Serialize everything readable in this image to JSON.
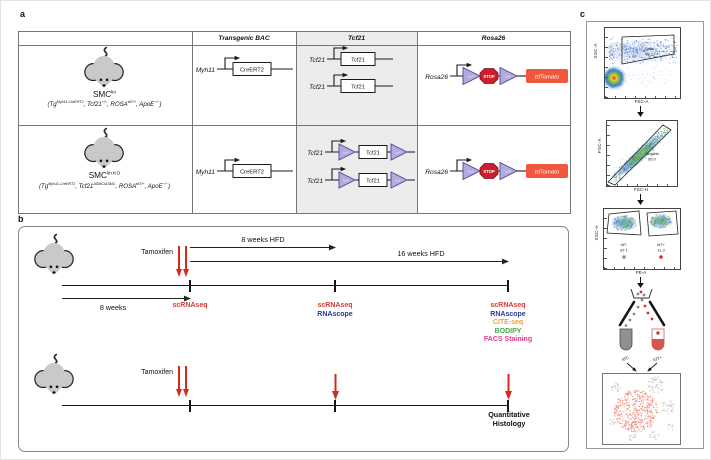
{
  "panel_labels": {
    "a": "a",
    "b": "b",
    "c": "c"
  },
  "panel_a": {
    "headers": {
      "transgenic_bac": "Transgenic BAC",
      "tcf21": "Tcf21",
      "rosa26": "Rosa26"
    },
    "row1": {
      "name": "SMC",
      "name_sup": "lin",
      "genotype": {
        "p1": "(Tg",
        "s1": "Myh11-CreERT2",
        "p2": ", Tcf21",
        "s2": "+/+",
        "p3": ", ROSA",
        "s3": "tdT/+",
        "p4": ", ApoE",
        "s4": "−/−",
        "p5": ")"
      },
      "bac_label": "Myh11",
      "bac_box": "CreERT2",
      "tcf21_label": "Tcf21",
      "tcf21_box": "Tcf21",
      "rosa_label": "Rosa26",
      "stop": "STOP",
      "reporter": "tdTomato",
      "loxp": "loxP"
    },
    "row2": {
      "name": "SMC",
      "name_sup": "lin KO",
      "genotype": {
        "p1": "(Tg",
        "s1": "Myh11-CreERT2",
        "p2": ", Tcf21",
        "s2": "ΔSMC/ΔSMC",
        "p3": ", ROSA",
        "s3": "tdT/+",
        "p4": ", ApoE",
        "s4": "−/−",
        "p5": ")"
      },
      "bac_label": "Myh11",
      "bac_box": "CreERT2",
      "tcf21_label": "Tcf21",
      "tcf21_box": "Tcf21",
      "rosa_label": "Rosa26",
      "stop": "STOP",
      "reporter": "tdTomato",
      "loxp": "loxP"
    }
  },
  "panel_b": {
    "tamoxifen1": "Tamoxifen",
    "tamoxifen2": "Tamoxifen",
    "weeks8": "8 weeks",
    "hfd8": "8 weeks HFD",
    "hfd16": "16 weeks HFD",
    "tp1_1": "scRNAseq",
    "tp2_1": "scRNAseq",
    "tp2_2": "RNAscope",
    "tp3_1": "scRNAseq",
    "tp3_2": "RNAscope",
    "tp3_3": "CITE-seq",
    "tp3_4": "BODIPY",
    "tp3_5": "FACS Staining",
    "hist1": "Quantitative",
    "hist2": "Histology"
  },
  "panel_c": {
    "plot1": {
      "ylabel": "SSC-A",
      "xlabel": "FSC-A",
      "gate": "Cells",
      "gate_pct": "78.2"
    },
    "plot2": {
      "ylabel": "FSC-A",
      "xlabel": "FSC-H",
      "gate": "Singlets",
      "gate_pct": "85.0"
    },
    "plot3": {
      "ylabel": "SSC-A",
      "xlabel": "PE-A",
      "gate_left": "tdT-",
      "gate_left_pct": "87.1",
      "gate_right": "tdT+",
      "gate_right_pct": "11.3"
    },
    "tube_left": "tdT-",
    "tube_right": "tdT+"
  },
  "colors": {
    "assay_red": "#cf3b35",
    "assay_blue": "#2b3a96",
    "assay_orange": "#f0a132",
    "assay_green": "#45a648",
    "assay_pink": "#e0418c",
    "tamoxifen_red": "#d42a20",
    "tdtomato_orange": "#f1573d",
    "stop_red": "#c9202c",
    "loxp_fill": "#b3abdd",
    "loxp_edge": "#4c4899",
    "tsne_red": "#ef8575",
    "tsne_grey": "#bcbcbc"
  }
}
